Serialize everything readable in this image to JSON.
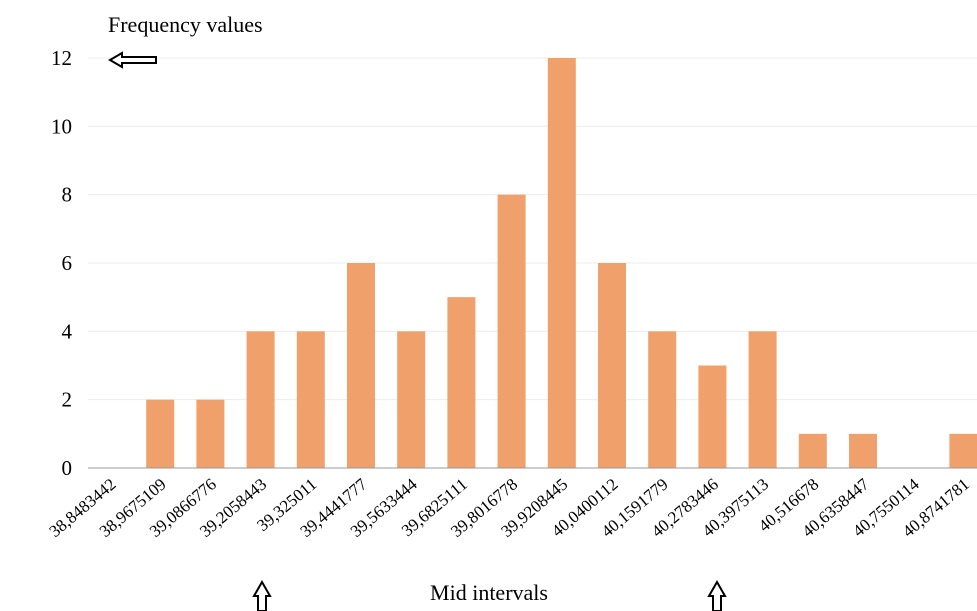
{
  "chart_data": {
    "type": "bar",
    "ylabel": "Frequency values",
    "xlabel": "Mid intervals",
    "ylim": [
      0,
      12
    ],
    "yticks": [
      0,
      2,
      4,
      6,
      8,
      10,
      12
    ],
    "grid": true,
    "bar_color": "#F0A06A",
    "categories": [
      "38,8483442",
      "38,9675109",
      "39,0866776",
      "39,2058443",
      "39,325011",
      "39,4441777",
      "39,5633444",
      "39,6825111",
      "39,8016778",
      "39,9208445",
      "40,0400112",
      "40,1591779",
      "40,2783446",
      "40,3975113",
      "40,516678",
      "40,6358447",
      "40,7550114",
      "40,8741781"
    ],
    "values": [
      0,
      2,
      2,
      4,
      4,
      6,
      4,
      5,
      8,
      12,
      6,
      4,
      3,
      4,
      1,
      1,
      0,
      1
    ]
  }
}
